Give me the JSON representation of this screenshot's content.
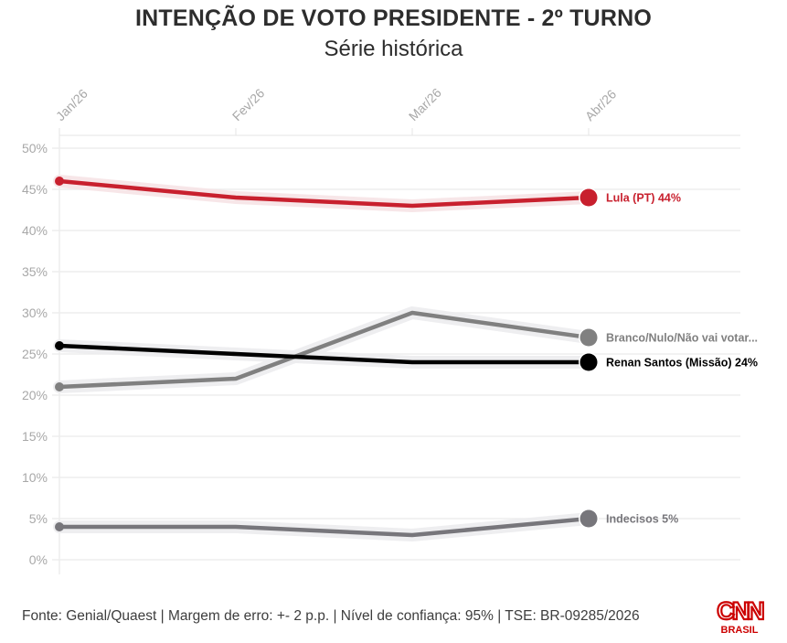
{
  "header": {
    "title": "INTENÇÃO DE VOTO PRESIDENTE - 2º TURNO",
    "subtitle": "Série histórica"
  },
  "footer": {
    "source": "Fonte: Genial/Quaest | Margem de erro: +- 2 p.p. | Nível de confiança: 95% | TSE: BR-09285/2026"
  },
  "logo": {
    "brand": "CNN",
    "sub": "BRASIL",
    "color": "#cc0000"
  },
  "chart_data": {
    "type": "line",
    "title": "INTENÇÃO DE VOTO PRESIDENTE - 2º TURNO",
    "subtitle": "Série histórica",
    "xlabel": "",
    "ylabel": "",
    "x": [
      "Jan/26",
      "Fev/26",
      "Mar/26",
      "Abr/26"
    ],
    "ylim": [
      0,
      50
    ],
    "yticks": [
      0,
      5,
      10,
      15,
      20,
      25,
      30,
      35,
      40,
      45,
      50
    ],
    "ytick_labels": [
      "0%",
      "5%",
      "10%",
      "15%",
      "20%",
      "25%",
      "30%",
      "35%",
      "40%",
      "45%",
      "50%"
    ],
    "grid": true,
    "legend": "end-of-line labels (right)",
    "series": [
      {
        "name": "Lula (PT)",
        "label": "Lula (PT) 44%",
        "color": "#c8202e",
        "values": [
          46,
          44,
          43,
          44
        ]
      },
      {
        "name": "Branco/Nulo/Não vai votar",
        "label": "Branco/Nulo/Não vai votar...",
        "color": "#808080",
        "values": [
          21,
          22,
          30,
          27
        ]
      },
      {
        "name": "Renan Santos (Missão)",
        "label": "Renan Santos (Missão) 24%",
        "color": "#000000",
        "values": [
          26,
          25,
          24,
          24
        ]
      },
      {
        "name": "Indecisos",
        "label": "Indecisos 5%",
        "color": "#77767b",
        "values": [
          4,
          4,
          3,
          5
        ]
      }
    ]
  }
}
